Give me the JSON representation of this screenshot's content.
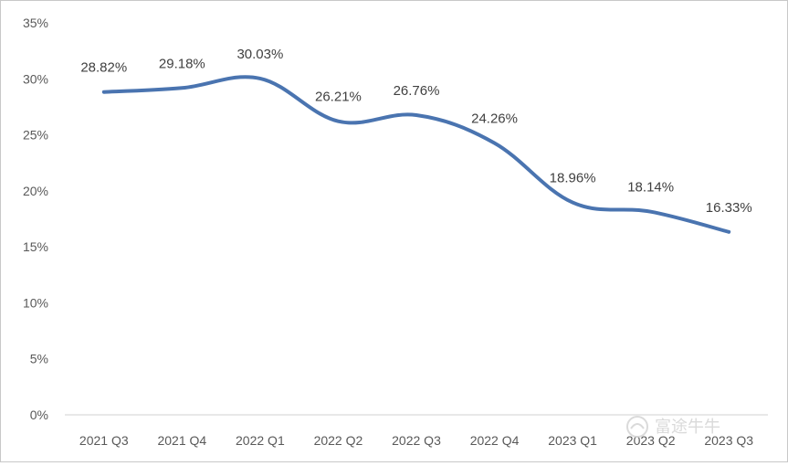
{
  "chart_data": {
    "type": "line",
    "categories": [
      "2021 Q3",
      "2021 Q4",
      "2022 Q1",
      "2022 Q2",
      "2022 Q3",
      "2022 Q4",
      "2023 Q1",
      "2023 Q2",
      "2023 Q3"
    ],
    "series": [
      {
        "values": [
          28.82,
          29.18,
          30.03,
          26.21,
          26.76,
          24.26,
          18.96,
          18.14,
          16.33
        ],
        "labels": [
          "28.82%",
          "29.18%",
          "30.03%",
          "26.21%",
          "26.76%",
          "24.26%",
          "18.96%",
          "18.14%",
          "16.33%"
        ],
        "color": "#4a74b0"
      }
    ],
    "ylim": [
      0,
      35
    ],
    "yticks": [
      "0%",
      "5%",
      "10%",
      "15%",
      "20%",
      "25%",
      "30%",
      "35%"
    ],
    "grid": false,
    "smooth": true,
    "title": "",
    "xlabel": "",
    "ylabel": ""
  },
  "watermark": {
    "text": "富途牛牛"
  }
}
